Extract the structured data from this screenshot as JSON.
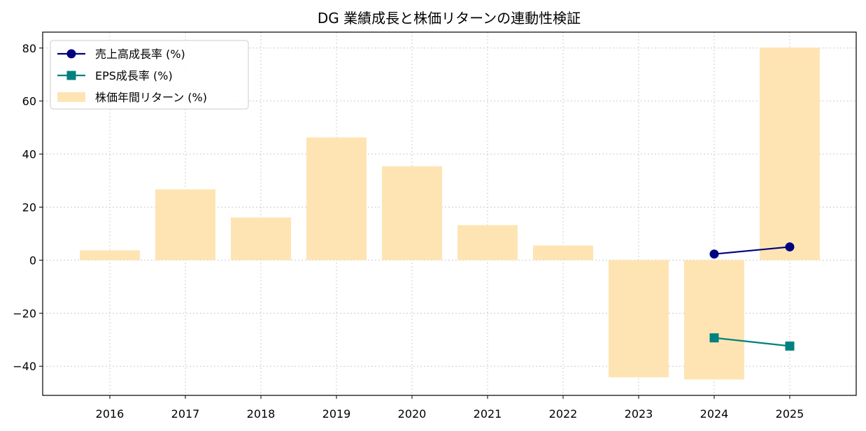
{
  "chart_data": {
    "type": "bar",
    "title": "DG 業績成長と株価リターンの連動性検証",
    "xlabel": "",
    "ylabel": "",
    "categories": [
      "2016",
      "2017",
      "2018",
      "2019",
      "2020",
      "2021",
      "2022",
      "2023",
      "2024",
      "2025"
    ],
    "ylim": [
      -51,
      86
    ],
    "yticks": [
      -40,
      -20,
      0,
      20,
      40,
      60,
      80
    ],
    "ytick_labels": [
      "−40",
      "−20",
      "0",
      "20",
      "40",
      "60",
      "80"
    ],
    "grid": true,
    "legend_position": "top-left",
    "series": [
      {
        "name": "株価年間リターン (%)",
        "kind": "bar",
        "color": "#ffe4b3",
        "values": [
          3.7,
          26.7,
          16.1,
          46.3,
          35.4,
          13.2,
          5.5,
          -44.2,
          -45.0,
          80.2
        ]
      },
      {
        "name": "売上高成長率 (%)",
        "kind": "line",
        "marker": "circle",
        "color": "#000080",
        "values": [
          null,
          null,
          null,
          null,
          null,
          null,
          null,
          null,
          2.3,
          5.0
        ]
      },
      {
        "name": "EPS成長率 (%)",
        "kind": "line",
        "marker": "square",
        "color": "#008080",
        "values": [
          null,
          null,
          null,
          null,
          null,
          null,
          null,
          null,
          -29.3,
          -32.4
        ]
      }
    ],
    "legend_order": [
      "売上高成長率 (%)",
      "EPS成長率 (%)",
      "株価年間リターン (%)"
    ]
  }
}
